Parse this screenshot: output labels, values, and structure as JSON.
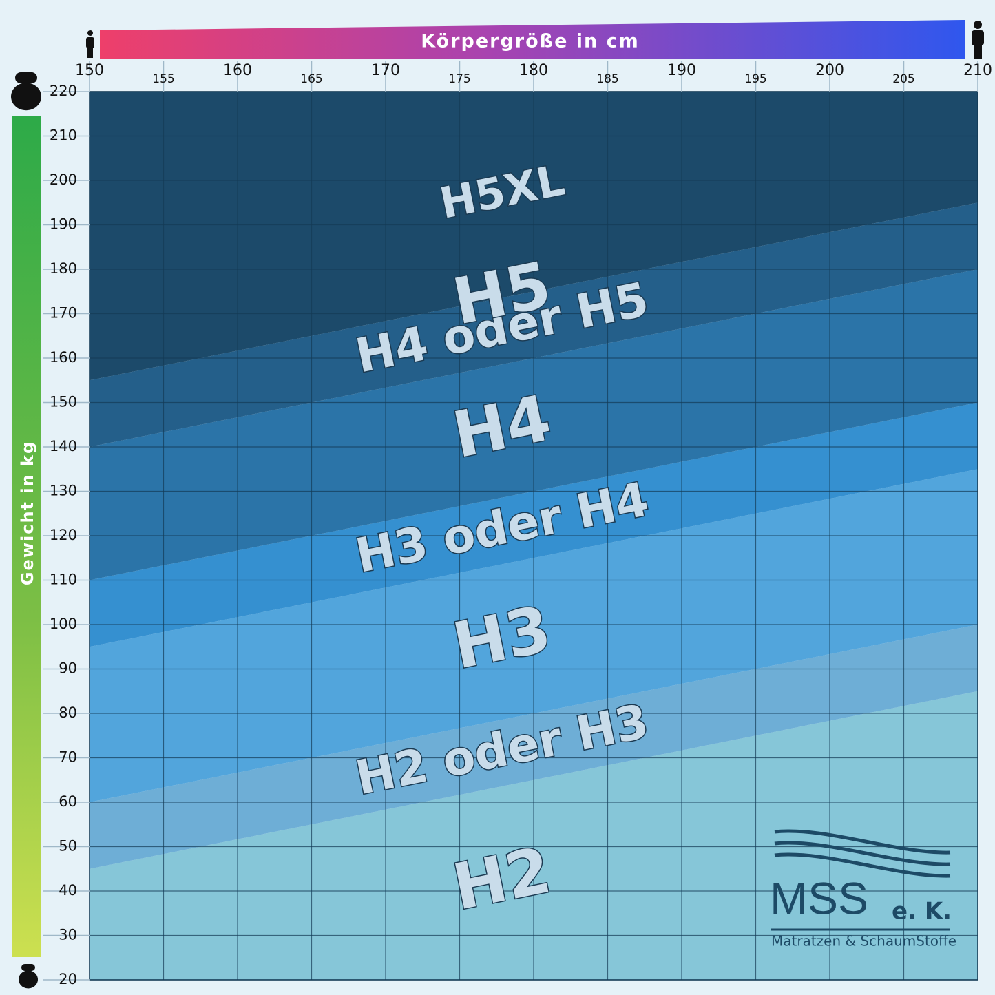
{
  "chart_data": {
    "type": "band",
    "x_label": "Körpergröße in cm",
    "y_label": "Gewicht in kg",
    "xlim": [
      150,
      210
    ],
    "ylim": [
      20,
      220
    ],
    "xticks": [
      150,
      155,
      160,
      165,
      170,
      175,
      180,
      185,
      190,
      195,
      200,
      205,
      210
    ],
    "yticks": [
      20,
      30,
      40,
      50,
      60,
      70,
      80,
      90,
      100,
      110,
      120,
      130,
      140,
      150,
      160,
      170,
      180,
      190,
      200,
      210,
      220
    ],
    "grid": true,
    "x": [
      150,
      210
    ],
    "boundaries": [
      [
        45,
        85
      ],
      [
        60,
        100
      ],
      [
        95,
        135
      ],
      [
        110,
        150
      ],
      [
        140,
        180
      ],
      [
        155,
        195
      ],
      [
        155,
        195
      ]
    ],
    "zones": [
      {
        "name": "H2",
        "color": "#86c6d8"
      },
      {
        "name": "H2 oder H3",
        "color": "#6eaed6"
      },
      {
        "name": "H3",
        "color": "#52a5dc"
      },
      {
        "name": "H3 oder H4",
        "color": "#3590d0"
      },
      {
        "name": "H4",
        "color": "#2b74a8"
      },
      {
        "name": "H4 oder H5",
        "color": "#245f8a"
      },
      {
        "name": "H5",
        "color": "#1c4a6a"
      },
      {
        "name": "H5XL",
        "color": "#1c4a6a"
      }
    ]
  },
  "logo": {
    "name": "MSS",
    "suffix": "e. K.",
    "tagline": "Matratzen & SchaumStoffe"
  }
}
